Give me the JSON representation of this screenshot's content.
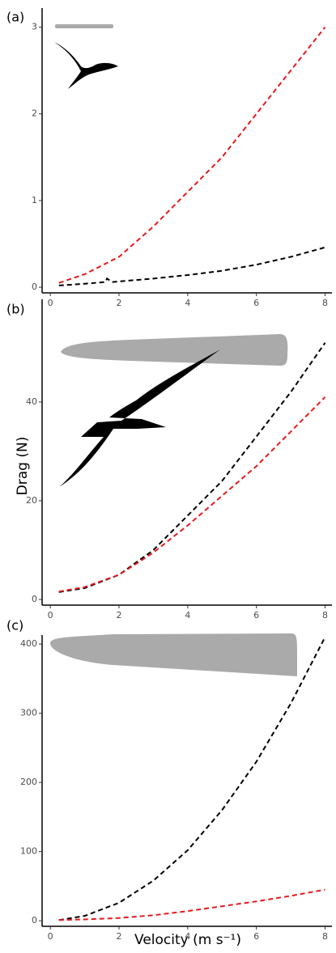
{
  "ylabel": "Drag (N)",
  "xlabel": "Velocity (m s⁻¹)",
  "chart_data": [
    {
      "type": "line",
      "label": "(a)",
      "xlim": [
        -0.24,
        8.2
      ],
      "xticks": [
        0,
        2,
        4,
        6,
        8
      ],
      "ylim": [
        -0.065,
        3.22
      ],
      "yticks": [
        0,
        1,
        2,
        3
      ],
      "series": [
        {
          "color": "#e41a1c",
          "x": [
            0.25,
            1,
            2,
            3,
            4,
            5,
            6,
            7,
            8
          ],
          "values": [
            0.05,
            0.15,
            0.35,
            0.7,
            1.1,
            1.5,
            2.0,
            2.5,
            3.0
          ]
        },
        {
          "color": "#000000",
          "x": [
            0.25,
            1,
            1.6,
            1.65,
            1.8,
            3,
            4,
            5,
            6,
            7,
            8
          ],
          "values": [
            0.02,
            0.04,
            0.06,
            0.1,
            0.06,
            0.1,
            0.14,
            0.19,
            0.26,
            0.35,
            0.46
          ]
        }
      ]
    },
    {
      "type": "line",
      "label": "(b)",
      "xlim": [
        -0.24,
        8.2
      ],
      "xticks": [
        0,
        2,
        4,
        6,
        8
      ],
      "ylim": [
        -1.15,
        60.8
      ],
      "yticks": [
        0,
        20,
        40
      ],
      "series": [
        {
          "color": "#000000",
          "x": [
            0.25,
            1,
            2,
            3,
            4,
            5,
            6,
            7,
            8
          ],
          "values": [
            1.5,
            2.3,
            5,
            10,
            17,
            24,
            33,
            42,
            52
          ]
        },
        {
          "color": "#e41a1c",
          "x": [
            0.25,
            1,
            2,
            3,
            4,
            5,
            6,
            7,
            8
          ],
          "values": [
            1.6,
            2.5,
            5,
            9.5,
            15,
            21,
            27,
            34,
            41
          ]
        }
      ]
    },
    {
      "type": "line",
      "label": "(c)",
      "xlim": [
        -0.24,
        8.2
      ],
      "xticks": [
        0,
        2,
        4,
        6,
        8
      ],
      "ylim": [
        -8,
        413
      ],
      "yticks": [
        0,
        100,
        200,
        300,
        400
      ],
      "series": [
        {
          "color": "#000000",
          "x": [
            0.25,
            1,
            2,
            3,
            4,
            5,
            6,
            7,
            8
          ],
          "values": [
            1,
            7,
            26,
            58,
            102,
            160,
            230,
            314,
            410
          ]
        },
        {
          "color": "#e41a1c",
          "x": [
            0.25,
            1,
            2,
            3,
            4,
            5,
            6,
            7,
            8
          ],
          "values": [
            1,
            2,
            4,
            8,
            14,
            21,
            28,
            36,
            45
          ]
        }
      ]
    }
  ]
}
